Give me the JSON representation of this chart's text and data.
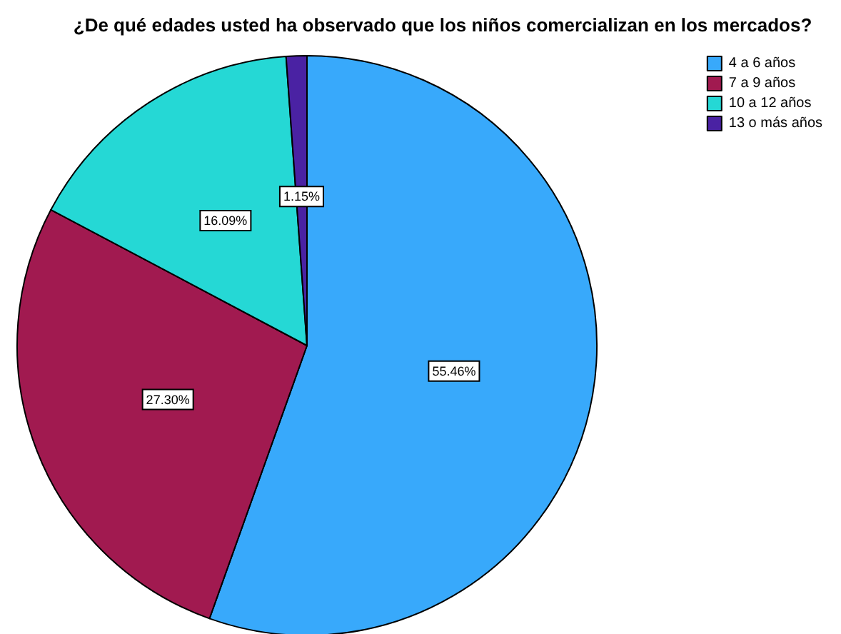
{
  "chart_data": {
    "type": "pie",
    "title": "¿De qué edades usted ha observado que los niños comercializan en los mercados?",
    "categories": [
      "4 a 6 años",
      "7 a 9 años",
      "10 a 12 años",
      "13 o más años"
    ],
    "values": [
      55.46,
      27.3,
      16.09,
      1.15
    ],
    "colors": [
      "#38a9fb",
      "#a11a50",
      "#25d8d5",
      "#4a22a3"
    ],
    "value_labels": [
      "55.46%",
      "27.30%",
      "16.09%",
      "1.15%"
    ],
    "legend": "top right"
  }
}
